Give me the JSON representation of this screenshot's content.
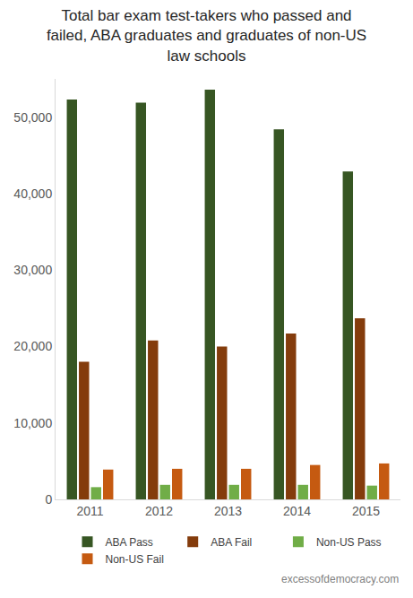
{
  "chart_data": {
    "type": "bar",
    "title": "Total bar exam test-takers who passed and failed, ABA graduates and graduates of non-US law schools",
    "categories": [
      "2011",
      "2012",
      "2013",
      "2014",
      "2015"
    ],
    "series": [
      {
        "name": "ABA Pass",
        "color": "#375623",
        "values": [
          52300,
          51900,
          53600,
          48400,
          42900
        ]
      },
      {
        "name": "ABA Fail",
        "color": "#843C0C",
        "values": [
          18000,
          20800,
          20000,
          21700,
          23700
        ]
      },
      {
        "name": "Non-US Pass",
        "color": "#70AD47",
        "values": [
          1600,
          1900,
          1900,
          1900,
          1800
        ]
      },
      {
        "name": "Non-US Fail",
        "color": "#C55A11",
        "values": [
          3900,
          4000,
          4000,
          4500,
          4700
        ]
      }
    ],
    "ylim": [
      0,
      55000
    ],
    "yticks": [
      0,
      {
        "value": 10000,
        "label": "10,000"
      },
      {
        "value": 20000,
        "label": "20,000"
      },
      {
        "value": 30000,
        "label": "30,000"
      },
      {
        "value": 40000,
        "label": "40,000"
      },
      {
        "value": 50000,
        "label": "50,000"
      }
    ],
    "grid": false,
    "legend": "bottom",
    "annotations": [
      {
        "text": "excessofdemocracy.com"
      }
    ]
  }
}
